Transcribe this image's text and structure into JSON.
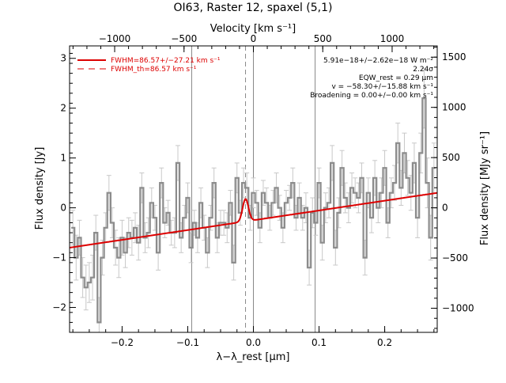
{
  "chart_data": {
    "type": "line",
    "title": "OI63, Raster 12, spaxel (5,1)",
    "xlabel": "λ−λ_rest [μm]",
    "ylabel": "Flux density [Jy]",
    "top_xlabel": "Velocity [km s⁻¹]",
    "right_ylabel": "Flux density [MJy sr⁻¹]",
    "xlim": [
      -0.28,
      0.28
    ],
    "ylim": [
      -2.5,
      3.25
    ],
    "top_xlim": [
      -1325,
      1325
    ],
    "right_ylim": [
      -1240,
      1612
    ],
    "x_ticks": [
      -0.2,
      -0.1,
      0.0,
      0.1,
      0.2
    ],
    "x_tick_labels": [
      "−0.2",
      "−0.1",
      "0.0",
      "0.1",
      "0.2"
    ],
    "y_ticks": [
      -2,
      -1,
      0,
      1,
      2,
      3
    ],
    "y_tick_labels": [
      "−2",
      "−1",
      "0",
      "1",
      "2",
      "3"
    ],
    "top_ticks": [
      -1000,
      -500,
      0,
      500,
      1000
    ],
    "top_tick_labels": [
      "−1000",
      "−500",
      "0",
      "500",
      "1000"
    ],
    "right_ticks": [
      -1000,
      -500,
      0,
      500,
      1000,
      1500
    ],
    "right_tick_labels": [
      "−1000",
      "−500",
      "0",
      "500",
      "1000",
      "1500"
    ],
    "vertical_lines": [
      {
        "x": -0.094,
        "style": "solid",
        "color": "#888888"
      },
      {
        "x": -0.012,
        "style": "dashed",
        "color": "#888888"
      },
      {
        "x": 0.0,
        "style": "solid",
        "color": "#888888"
      },
      {
        "x": 0.094,
        "style": "solid",
        "color": "#888888"
      }
    ],
    "legend": [
      {
        "label": "FWHM=86.57+/−27.21 km s⁻¹",
        "style": "solid",
        "color": "#dd0000"
      },
      {
        "label": "FWHM_th=86.57 km s⁻¹",
        "style": "dashed",
        "color": "#dd0000"
      }
    ],
    "annotations": [
      "5.91e−18+/−2.62e−18 W m⁻²",
      "2.24σ",
      "EQW_rest = 0.29 μm",
      "v = −58.30+/−15.88 km s⁻¹",
      "Broadening = 0.00+/−0.00 km s⁻¹"
    ],
    "fit": {
      "baseline": [
        [
          -0.28,
          -0.8
        ],
        [
          0.28,
          0.3
        ]
      ],
      "gaussian_center": -0.012,
      "gaussian_amplitude": 0.45,
      "gaussian_sigma": 0.0045,
      "color": "#dd0000"
    },
    "series": [
      {
        "kind": "spectrum-step",
        "color": "#8c8c8c",
        "x": [
          -0.275,
          -0.27,
          -0.265,
          -0.26,
          -0.255,
          -0.25,
          -0.245,
          -0.24,
          -0.235,
          -0.23,
          -0.225,
          -0.22,
          -0.215,
          -0.21,
          -0.205,
          -0.2,
          -0.195,
          -0.19,
          -0.185,
          -0.18,
          -0.175,
          -0.17,
          -0.165,
          -0.16,
          -0.155,
          -0.15,
          -0.145,
          -0.14,
          -0.135,
          -0.13,
          -0.125,
          -0.12,
          -0.115,
          -0.11,
          -0.105,
          -0.1,
          -0.095,
          -0.09,
          -0.085,
          -0.08,
          -0.075,
          -0.07,
          -0.065,
          -0.06,
          -0.055,
          -0.05,
          -0.045,
          -0.04,
          -0.035,
          -0.03,
          -0.025,
          -0.02,
          -0.015,
          -0.01,
          -0.005,
          0.0,
          0.005,
          0.01,
          0.015,
          0.02,
          0.025,
          0.03,
          0.035,
          0.04,
          0.045,
          0.05,
          0.055,
          0.06,
          0.065,
          0.07,
          0.075,
          0.08,
          0.085,
          0.09,
          0.095,
          0.1,
          0.105,
          0.11,
          0.115,
          0.12,
          0.125,
          0.13,
          0.135,
          0.14,
          0.145,
          0.15,
          0.155,
          0.16,
          0.165,
          0.17,
          0.175,
          0.18,
          0.185,
          0.19,
          0.195,
          0.2,
          0.205,
          0.21,
          0.215,
          0.22,
          0.225,
          0.23,
          0.235,
          0.24,
          0.245,
          0.25,
          0.255,
          0.26,
          0.265,
          0.27,
          0.275
        ],
        "y": [
          -0.4,
          -1.0,
          -0.6,
          -1.4,
          -1.6,
          -1.5,
          -1.4,
          -0.5,
          -2.3,
          -1.0,
          -0.4,
          0.3,
          -0.3,
          -0.8,
          -1.0,
          -0.6,
          -0.9,
          -0.5,
          -0.6,
          -0.4,
          -0.7,
          0.4,
          -0.6,
          -0.5,
          0.1,
          -0.2,
          -0.9,
          0.5,
          -0.3,
          -0.1,
          -0.5,
          -0.5,
          0.9,
          -0.6,
          -0.2,
          0.2,
          -0.8,
          -0.3,
          -0.6,
          0.1,
          -0.4,
          -0.9,
          -0.2,
          0.5,
          -0.6,
          -0.3,
          -0.3,
          -0.4,
          0.1,
          -1.1,
          0.6,
          -0.1,
          0.5,
          0.4,
          -0.2,
          0.3,
          0.1,
          -0.4,
          0.3,
          0.1,
          -0.2,
          0.1,
          0.4,
          0.0,
          -0.4,
          0.1,
          0.2,
          0.5,
          -0.2,
          0.2,
          -0.2,
          0.0,
          -1.2,
          -0.1,
          -0.3,
          0.5,
          -0.7,
          0.0,
          0.1,
          0.9,
          -0.8,
          -0.1,
          0.8,
          0.2,
          0.0,
          0.4,
          0.3,
          0.2,
          0.6,
          -1.0,
          0.3,
          -0.2,
          0.6,
          0.0,
          0.3,
          0.8,
          -0.3,
          0.3,
          0.5,
          1.3,
          0.4,
          1.1,
          0.6,
          0.3,
          0.9,
          -0.2,
          1.1,
          2.2,
          0.5,
          -0.6,
          0.8
        ],
        "errors": [
          0.35,
          0.45,
          0.35,
          0.4,
          0.45,
          0.4,
          0.45,
          0.35,
          0.5,
          0.35,
          0.3,
          0.35,
          0.3,
          0.35,
          0.4,
          0.35,
          0.3,
          0.3,
          0.35,
          0.3,
          0.35,
          0.3,
          0.3,
          0.3,
          0.3,
          0.25,
          0.35,
          0.3,
          0.3,
          0.25,
          0.25,
          0.3,
          0.35,
          0.3,
          0.25,
          0.3,
          0.3,
          0.25,
          0.3,
          0.3,
          0.25,
          0.3,
          0.25,
          0.3,
          0.3,
          0.25,
          0.25,
          0.3,
          0.25,
          0.35,
          0.3,
          0.25,
          0.3,
          0.3,
          0.25,
          0.3,
          0.25,
          0.3,
          0.25,
          0.3,
          0.25,
          0.25,
          0.3,
          0.25,
          0.3,
          0.25,
          0.25,
          0.3,
          0.25,
          0.3,
          0.25,
          0.3,
          0.35,
          0.3,
          0.25,
          0.3,
          0.35,
          0.3,
          0.3,
          0.35,
          0.35,
          0.3,
          0.35,
          0.3,
          0.3,
          0.3,
          0.3,
          0.3,
          0.3,
          0.35,
          0.3,
          0.3,
          0.35,
          0.3,
          0.3,
          0.35,
          0.3,
          0.3,
          0.35,
          0.4,
          0.35,
          0.4,
          0.35,
          0.35,
          0.4,
          0.4,
          0.4,
          0.6,
          0.5,
          0.45,
          0.5
        ]
      }
    ]
  }
}
